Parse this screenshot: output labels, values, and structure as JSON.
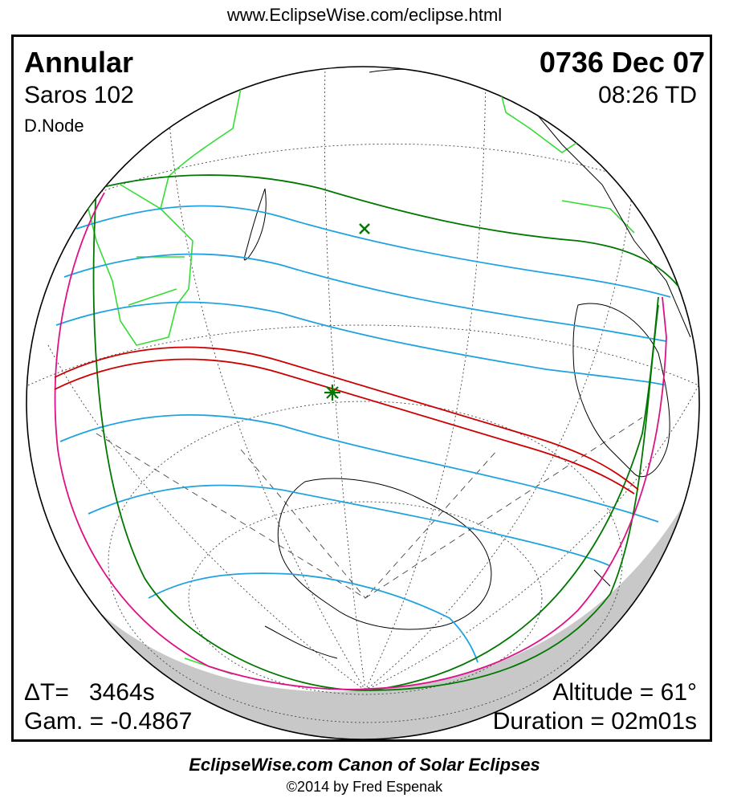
{
  "header": {
    "url": "www.EclipseWise.com/eclipse.html"
  },
  "eclipse": {
    "type": "Annular",
    "date": "0736 Dec 07",
    "saros": "Saros 102",
    "time": "08:26 TD",
    "node": "D.Node",
    "delta_t": "ΔT=   3464s",
    "gamma": "Gam. = -0.4867",
    "altitude": "Altitude = 61°",
    "duration": "Duration = 02m01s"
  },
  "footer": {
    "canon": "EclipseWise.com Canon of Solar Eclipses",
    "copyright": "©2014 by Fred Espenak"
  },
  "colors": {
    "central_path": "#cc0000",
    "penumbra_limits": "#007700",
    "rise_set_curve": "#dd1188",
    "magnitude_lines": "#1fa3e0",
    "coastline_day": "#33dd33",
    "coastline": "#000000",
    "night_shade": "#c8c8c8"
  },
  "map": {
    "greatest_eclipse_icon": "star-marker",
    "subsolar_icon": "x-marker"
  }
}
